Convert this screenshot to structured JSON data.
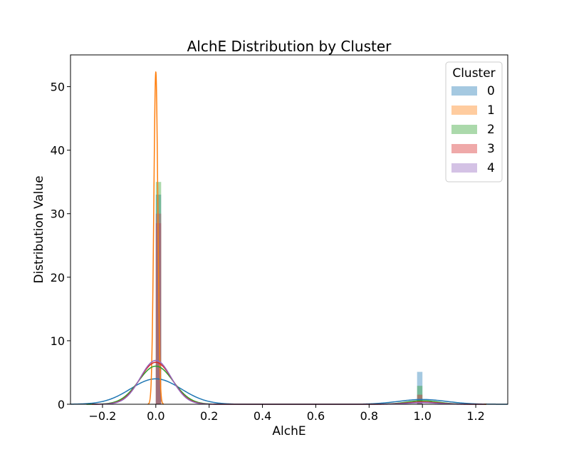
{
  "chart_data": {
    "type": "histogram+kde",
    "title": "AlchE Distribution by Cluster",
    "xlabel": "AlchE",
    "ylabel": "Distribution Value",
    "xlim": [
      -0.32,
      1.32
    ],
    "ylim": [
      0,
      55
    ],
    "xticks": [
      -0.2,
      0.0,
      0.2,
      0.4,
      0.6,
      0.8,
      1.0,
      1.2
    ],
    "xtick_labels": [
      "−0.2",
      "0.0",
      "0.2",
      "0.4",
      "0.6",
      "0.8",
      "1.0",
      "1.2"
    ],
    "yticks": [
      0,
      10,
      20,
      30,
      40,
      50
    ],
    "ytick_labels": [
      "0",
      "10",
      "20",
      "30",
      "40",
      "50"
    ],
    "grid": false,
    "legend": {
      "title": "Cluster",
      "placement": "top-right"
    },
    "bin_width": 0.02,
    "series": [
      {
        "name": "0",
        "color": "#1f77b4",
        "hist": [
          {
            "x0": 0.0,
            "x1": 0.02,
            "height": 33.0
          },
          {
            "x0": 0.98,
            "x1": 1.0,
            "height": 5.1
          }
        ],
        "kde_peak": [
          {
            "center": 0.0,
            "height": 4.0,
            "sd": 0.095
          },
          {
            "center": 1.0,
            "height": 0.75,
            "sd": 0.09
          }
        ]
      },
      {
        "name": "1",
        "color": "#ff7f0e",
        "hist": [
          {
            "x0": 0.0,
            "x1": 0.02,
            "height": 30.0
          }
        ],
        "kde_peak": [
          {
            "center": 0.0,
            "height": 52.3,
            "sd": 0.0075
          }
        ]
      },
      {
        "name": "2",
        "color": "#2ca02c",
        "hist": [
          {
            "x0": 0.0,
            "x1": 0.02,
            "height": 35.0
          },
          {
            "x0": 0.98,
            "x1": 1.0,
            "height": 2.9
          }
        ],
        "kde_peak": [
          {
            "center": 0.0,
            "height": 6.0,
            "sd": 0.065
          },
          {
            "center": 1.0,
            "height": 0.55,
            "sd": 0.06
          }
        ]
      },
      {
        "name": "3",
        "color": "#d62728",
        "hist": [
          {
            "x0": 0.0,
            "x1": 0.02,
            "height": 28.5
          },
          {
            "x0": 0.98,
            "x1": 1.0,
            "height": 1.5
          }
        ],
        "kde_peak": [
          {
            "center": 0.0,
            "height": 6.6,
            "sd": 0.06
          },
          {
            "center": 1.0,
            "height": 0.35,
            "sd": 0.06
          }
        ]
      },
      {
        "name": "4",
        "color": "#9467bd",
        "hist": [
          {
            "x0": 0.0,
            "x1": 0.02,
            "height": 30.0
          },
          {
            "x0": 0.98,
            "x1": 1.0,
            "height": 0.9
          }
        ],
        "kde_peak": [
          {
            "center": 0.0,
            "height": 6.9,
            "sd": 0.058
          },
          {
            "center": 1.0,
            "height": 0.25,
            "sd": 0.058
          }
        ]
      }
    ]
  }
}
